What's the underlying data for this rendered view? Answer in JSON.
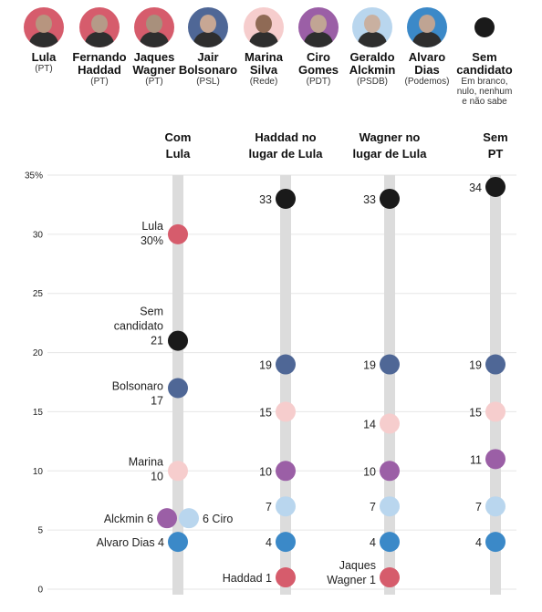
{
  "candidates": [
    {
      "name_lines": [
        "Lula"
      ],
      "party": "(PT)",
      "ring": "#d65c6c",
      "face": "#b7957f"
    },
    {
      "name_lines": [
        "Fernando",
        "Haddad"
      ],
      "party": "(PT)",
      "ring": "#d65c6c",
      "face": "#b59a88"
    },
    {
      "name_lines": [
        "Jaques",
        "Wagner"
      ],
      "party": "(PT)",
      "ring": "#d65c6c",
      "face": "#a8907c"
    },
    {
      "name_lines": [
        "Jair",
        "Bolsonaro"
      ],
      "party": "(PSL)",
      "ring": "#4f6796",
      "face": "#c7a794"
    },
    {
      "name_lines": [
        "Marina",
        "Silva"
      ],
      "party": "(Rede)",
      "ring": "#f6cdcd",
      "face": "#8f6a55"
    },
    {
      "name_lines": [
        "Ciro",
        "Gomes"
      ],
      "party": "(PDT)",
      "ring": "#9b5fa6",
      "face": "#c1a594"
    },
    {
      "name_lines": [
        "Geraldo",
        "Alckmin"
      ],
      "party": "(PSDB)",
      "ring": "#b9d6ee",
      "face": "#c9b0a0"
    },
    {
      "name_lines": [
        "Alvaro",
        "Dias"
      ],
      "party": "(Podemos)",
      "ring": "#3b89c8",
      "face": "#bfa493"
    },
    {
      "name_lines": [
        "Sem",
        "candidato"
      ],
      "party": "",
      "note_lines": [
        "Em branco,",
        "nulo, nenhum",
        "e não sabe"
      ],
      "ring": "#1a1a1a",
      "is_dot": true
    }
  ],
  "chart_data": {
    "type": "scatter",
    "ylim": [
      0,
      35
    ],
    "yticks": [
      0,
      5,
      10,
      15,
      20,
      25,
      30,
      35
    ],
    "ytick_labels": [
      "0",
      "5",
      "10",
      "15",
      "20",
      "25",
      "30",
      "35%"
    ],
    "columns": [
      {
        "title_lines": [
          "Com",
          "Lula"
        ]
      },
      {
        "title_lines": [
          "Haddad no",
          "lugar de Lula"
        ]
      },
      {
        "title_lines": [
          "Wagner no",
          "lugar de Lula"
        ]
      },
      {
        "title_lines": [
          "Sem",
          "PT"
        ]
      }
    ],
    "series": [
      {
        "name": "Lula",
        "color": "#d65c6c",
        "values": [
          30,
          null,
          null,
          null
        ]
      },
      {
        "name": "Sem candidato",
        "color": "#1a1a1a",
        "values": [
          21,
          33,
          33,
          34
        ]
      },
      {
        "name": "Bolsonaro",
        "color": "#4f6796",
        "values": [
          17,
          19,
          19,
          19
        ]
      },
      {
        "name": "Marina",
        "color": "#f6cdcd",
        "values": [
          10,
          15,
          14,
          15
        ]
      },
      {
        "name": "Ciro",
        "color": "#9b5fa6",
        "values": [
          6,
          10,
          10,
          11
        ]
      },
      {
        "name": "Alckmin",
        "color": "#b9d6ee",
        "values": [
          6,
          7,
          7,
          7
        ]
      },
      {
        "name": "Alvaro Dias",
        "color": "#3b89c8",
        "values": [
          4,
          4,
          4,
          4
        ]
      },
      {
        "name": "Haddad",
        "color": "#d65c6c",
        "values": [
          null,
          1,
          null,
          null
        ]
      },
      {
        "name": "Jaques Wagner",
        "color": "#d65c6c",
        "values": [
          null,
          null,
          1,
          null
        ]
      }
    ],
    "labels": [
      {
        "lines": [
          "Lula",
          "30%"
        ]
      },
      {
        "lines": [
          "Sem",
          "candidato",
          "21"
        ]
      },
      {
        "lines": [
          "Bolsonaro",
          "17"
        ]
      },
      {
        "lines": [
          "Marina",
          "10"
        ]
      },
      {
        "lines": [
          "Alckmin 6"
        ]
      },
      {
        "lines": [
          "6 Ciro"
        ]
      },
      {
        "lines": [
          "Alvaro Dias 4"
        ]
      },
      {
        "lines": [
          "33"
        ]
      },
      {
        "lines": [
          "19"
        ]
      },
      {
        "lines": [
          "15"
        ]
      },
      {
        "lines": [
          "10"
        ]
      },
      {
        "lines": [
          "7"
        ]
      },
      {
        "lines": [
          "4"
        ]
      },
      {
        "lines": [
          "Haddad 1"
        ]
      },
      {
        "lines": [
          "33"
        ]
      },
      {
        "lines": [
          "19"
        ]
      },
      {
        "lines": [
          "14"
        ]
      },
      {
        "lines": [
          "10"
        ]
      },
      {
        "lines": [
          "7"
        ]
      },
      {
        "lines": [
          "4"
        ]
      },
      {
        "lines": [
          "Jaques",
          "Wagner 1"
        ]
      },
      {
        "lines": [
          "34"
        ]
      },
      {
        "lines": [
          "19"
        ]
      },
      {
        "lines": [
          "15"
        ]
      },
      {
        "lines": [
          "11"
        ]
      },
      {
        "lines": [
          "7"
        ]
      },
      {
        "lines": [
          "4"
        ]
      }
    ],
    "colors": {
      "track": "#dcdcdc",
      "grid": "#e6e6e6",
      "text": "#222222"
    }
  }
}
